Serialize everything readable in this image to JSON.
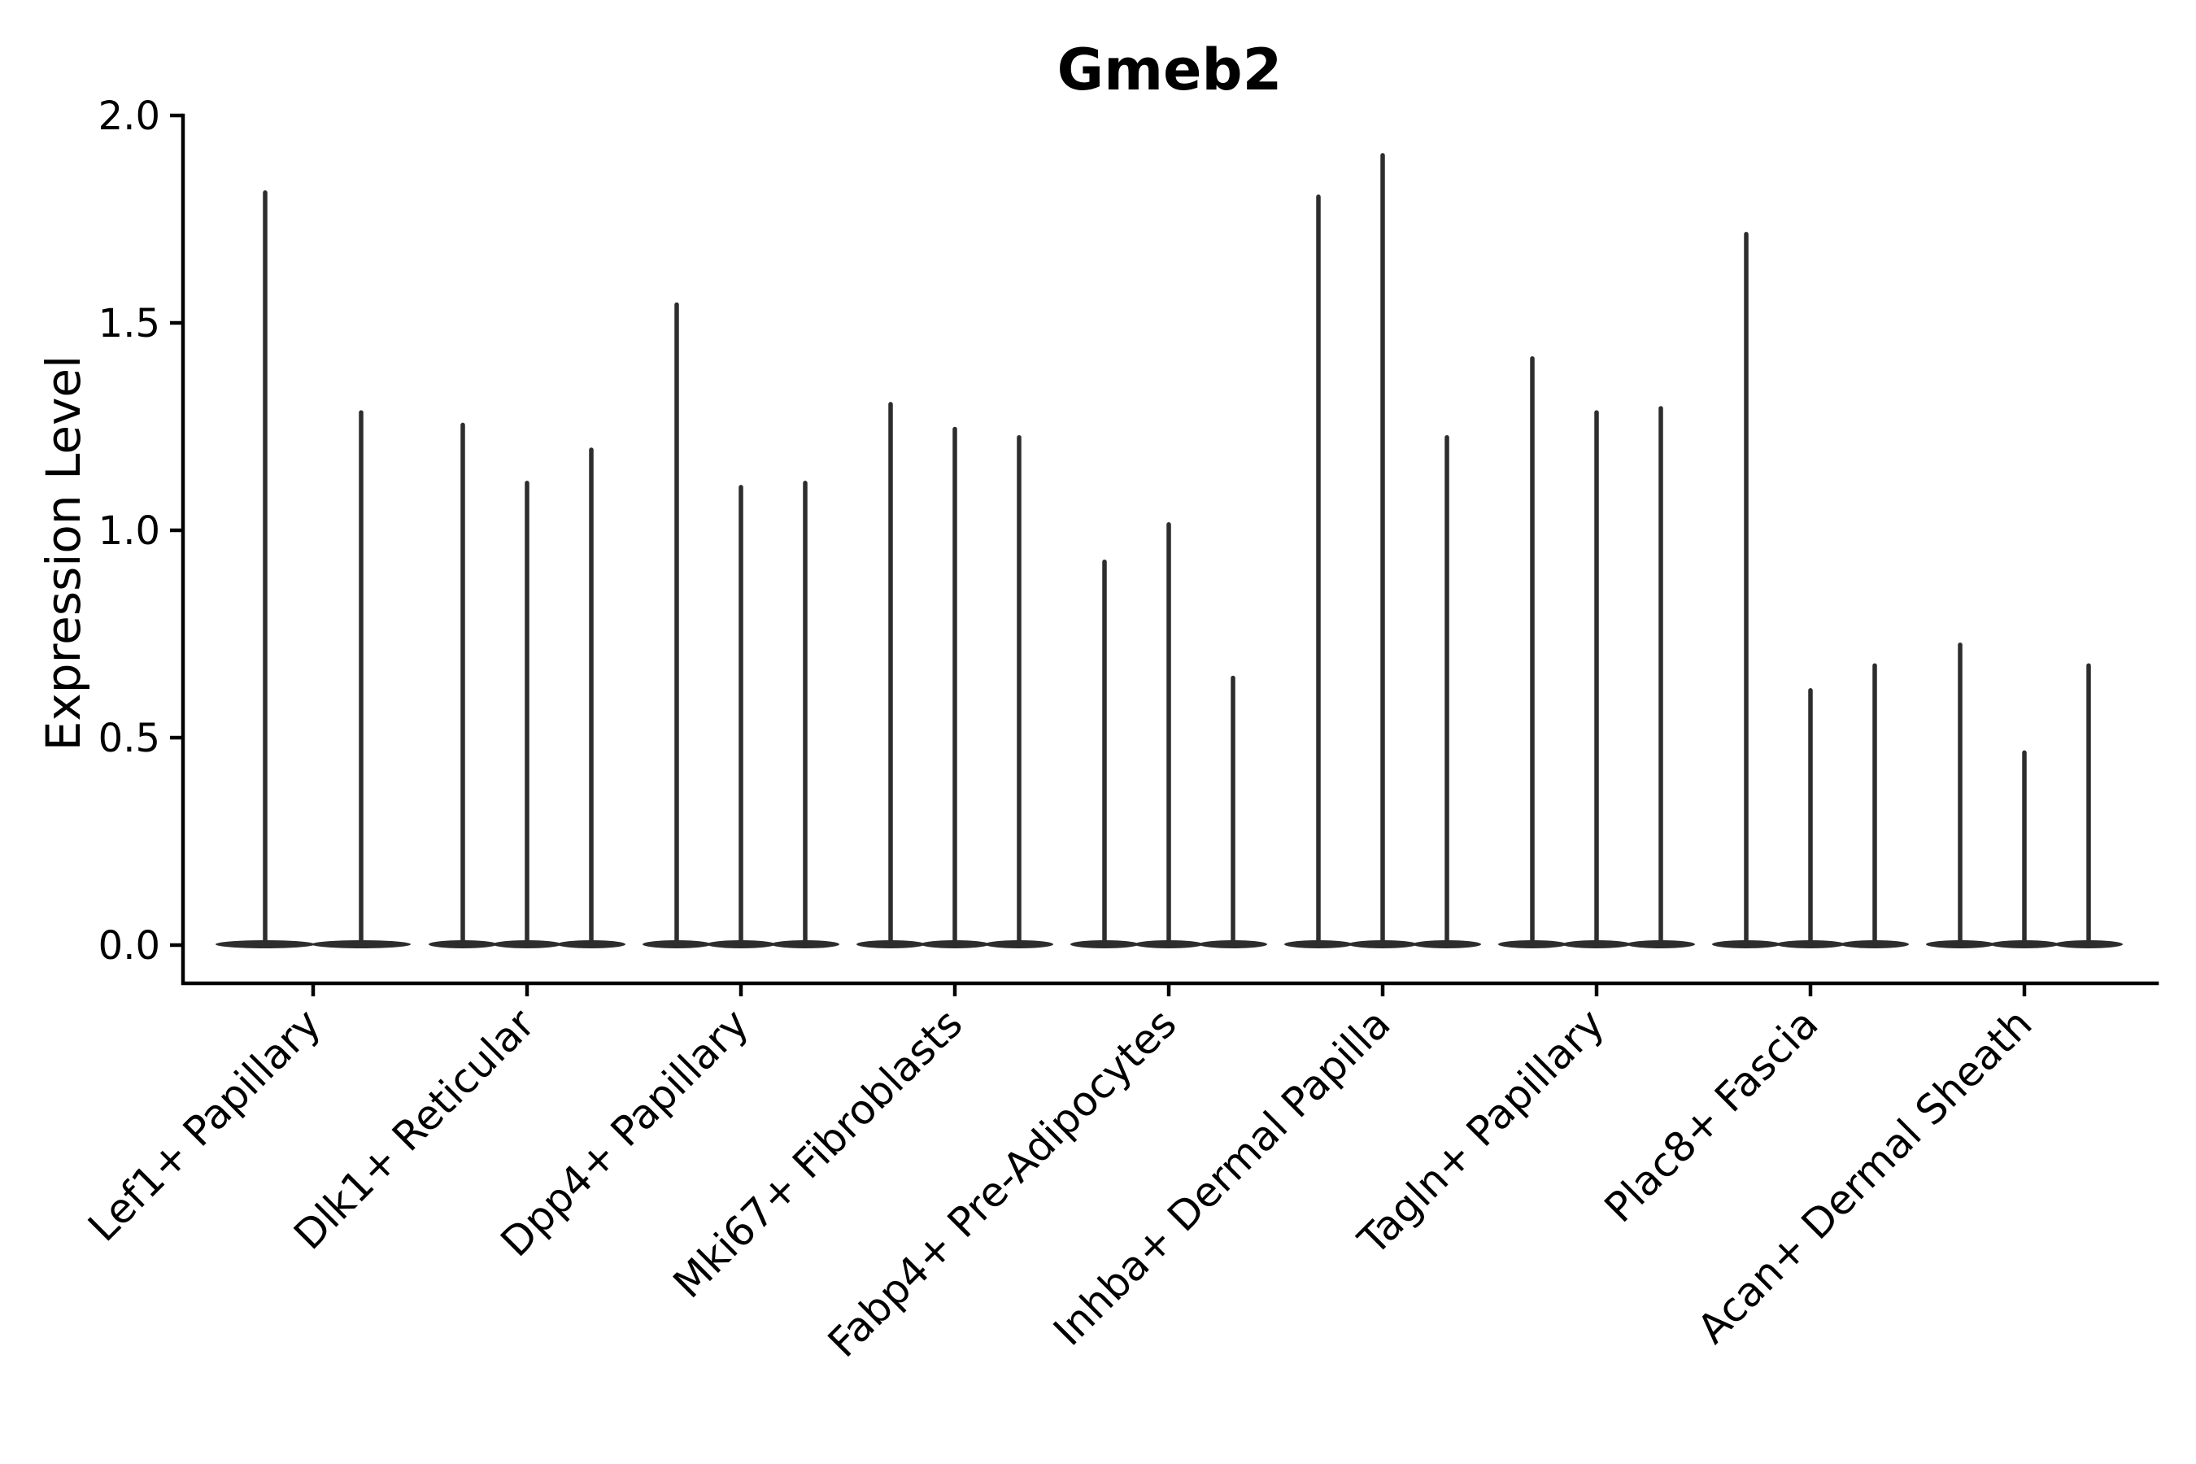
{
  "figure": {
    "kind": "matplotlib-style violin plot"
  },
  "chart_data": {
    "type": "violin",
    "title": "Gmeb2",
    "xlabel": "",
    "ylabel": "Expression Level",
    "ylim": [
      0.0,
      2.0
    ],
    "yticks": [
      "0.0",
      "0.5",
      "1.0",
      "1.5",
      "2.0"
    ],
    "grid": false,
    "legend": "none",
    "violin_color": "#2d2d2d",
    "axis_color": "#000000",
    "background": "#ffffff",
    "groups": [
      {
        "label": "Lef1+ Papillary",
        "violin_max_values": [
          1.82,
          1.29
        ]
      },
      {
        "label": "Dlk1+ Reticular",
        "violin_max_values": [
          1.26,
          1.12,
          1.2
        ]
      },
      {
        "label": "Dpp4+ Papillary",
        "violin_max_values": [
          1.55,
          1.11,
          1.12
        ]
      },
      {
        "label": "Mki67+ Fibroblasts",
        "violin_max_values": [
          1.31,
          1.25,
          1.23
        ]
      },
      {
        "label": "Fabp4+ Pre-Adipocytes",
        "violin_max_values": [
          0.93,
          1.02,
          0.65
        ]
      },
      {
        "label": "Inhba+ Dermal Papilla",
        "violin_max_values": [
          1.81,
          1.91,
          1.23
        ]
      },
      {
        "label": "Tagln+ Papillary",
        "violin_max_values": [
          1.42,
          1.29,
          1.3
        ]
      },
      {
        "label": "Plac8+ Fascia",
        "violin_max_values": [
          1.72,
          0.62,
          0.68
        ]
      },
      {
        "label": "Acan+ Dermal Sheath",
        "violin_max_values": [
          0.73,
          0.47,
          0.68
        ]
      }
    ]
  }
}
